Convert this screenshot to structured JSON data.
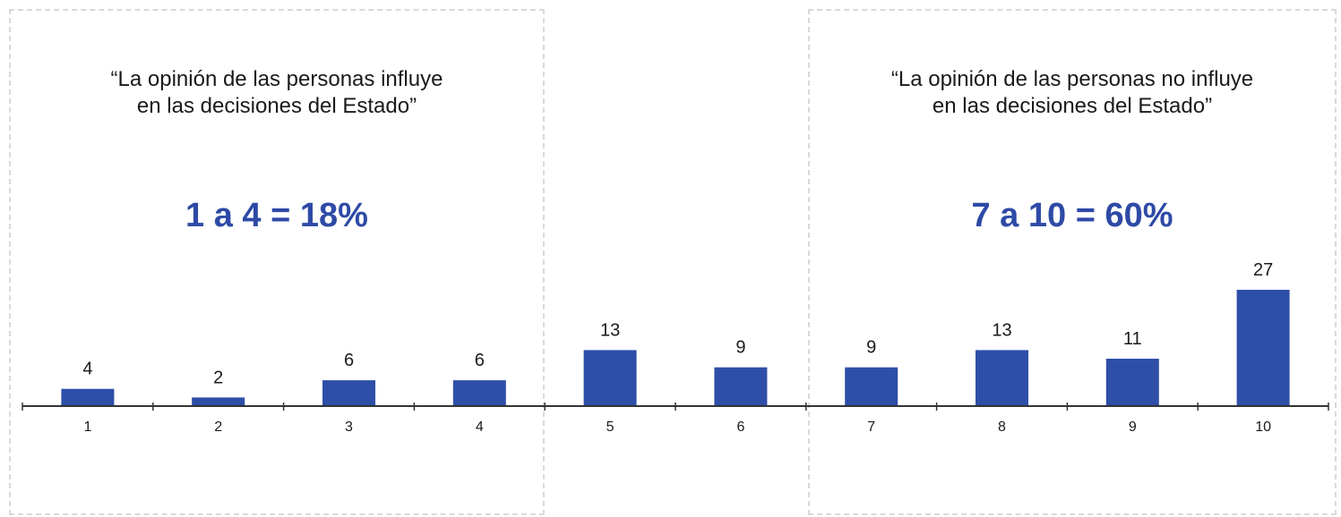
{
  "left_panel": {
    "quote_line1": "“La opinión de las personas influye",
    "quote_line2": "en las decisiones del Estado”",
    "summary": "1 a 4 = 18%"
  },
  "right_panel": {
    "quote_line1": "“La opinión de las personas no influye",
    "quote_line2": "en las decisiones del Estado”",
    "summary": "7 a 10 = 60%"
  },
  "colors": {
    "bar": "#2e4fa8",
    "summary_text": "#2e4aa6"
  },
  "chart_data": {
    "type": "bar",
    "categories": [
      "1",
      "2",
      "3",
      "4",
      "5",
      "6",
      "7",
      "8",
      "9",
      "10"
    ],
    "values": [
      4,
      2,
      6,
      6,
      13,
      9,
      9,
      13,
      11,
      27
    ],
    "ylim": [
      0,
      27
    ]
  }
}
